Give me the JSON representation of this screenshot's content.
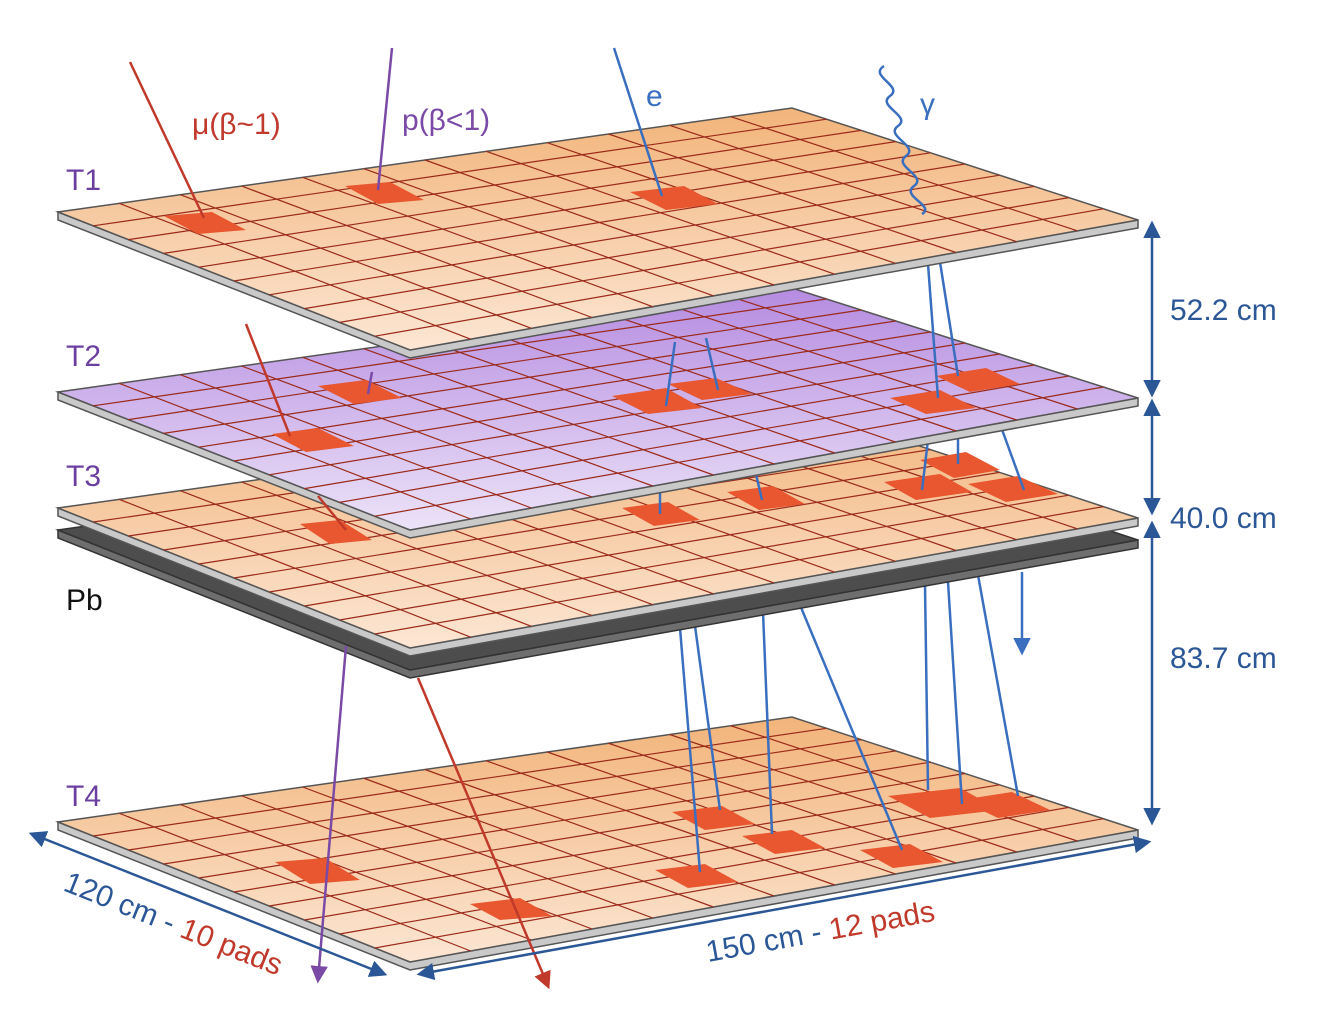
{
  "planes": [
    {
      "id": "T1",
      "label": "T1",
      "fill_top": "#f2b47a",
      "fill_bottom": "#fce6d4",
      "edge": "#c9c9c9"
    },
    {
      "id": "T2",
      "label": "T2",
      "fill_top": "#b58be0",
      "fill_bottom": "#ece3f8",
      "edge": "#c9c9c9"
    },
    {
      "id": "T3",
      "label": "T3",
      "fill_top": "#f2b47a",
      "fill_bottom": "#fce6d4",
      "edge": "#c9c9c9"
    },
    {
      "id": "Pb",
      "label": "Pb",
      "fill_top": "#8a8a8a",
      "fill_bottom": "#4d4d4d",
      "edge": "#6e6e6e"
    },
    {
      "id": "T4",
      "label": "T4",
      "fill_top": "#f2b47a",
      "fill_bottom": "#fce6d4",
      "edge": "#c9c9c9"
    }
  ],
  "particles": {
    "muon": {
      "label": "μ(β~1)",
      "color": "#c0392b"
    },
    "proton": {
      "label": "p(β<1)",
      "color": "#7a4aa6"
    },
    "electron": {
      "label": "e",
      "color": "#3a6fbf"
    },
    "photon": {
      "label": "γ",
      "color": "#3a6fbf"
    }
  },
  "dimensions": {
    "gap_t1_t2": "52.2 cm",
    "gap_t2_t3": "40.0 cm",
    "gap_t3_t4": "83.7 cm",
    "depth_length": "120 cm",
    "depth_separator": " - ",
    "depth_pads": "10 pads",
    "width_length": "150 cm",
    "width_separator": " - ",
    "width_pads": "12 pads"
  },
  "grid": {
    "cols": 12,
    "rows": 10
  },
  "colors": {
    "dimension_blue": "#2b5797",
    "pads_red": "#c0392b",
    "label_purple": "#6b3fa0",
    "hit_pad": "#e8572f",
    "grid_line": "#9b2a1a"
  }
}
